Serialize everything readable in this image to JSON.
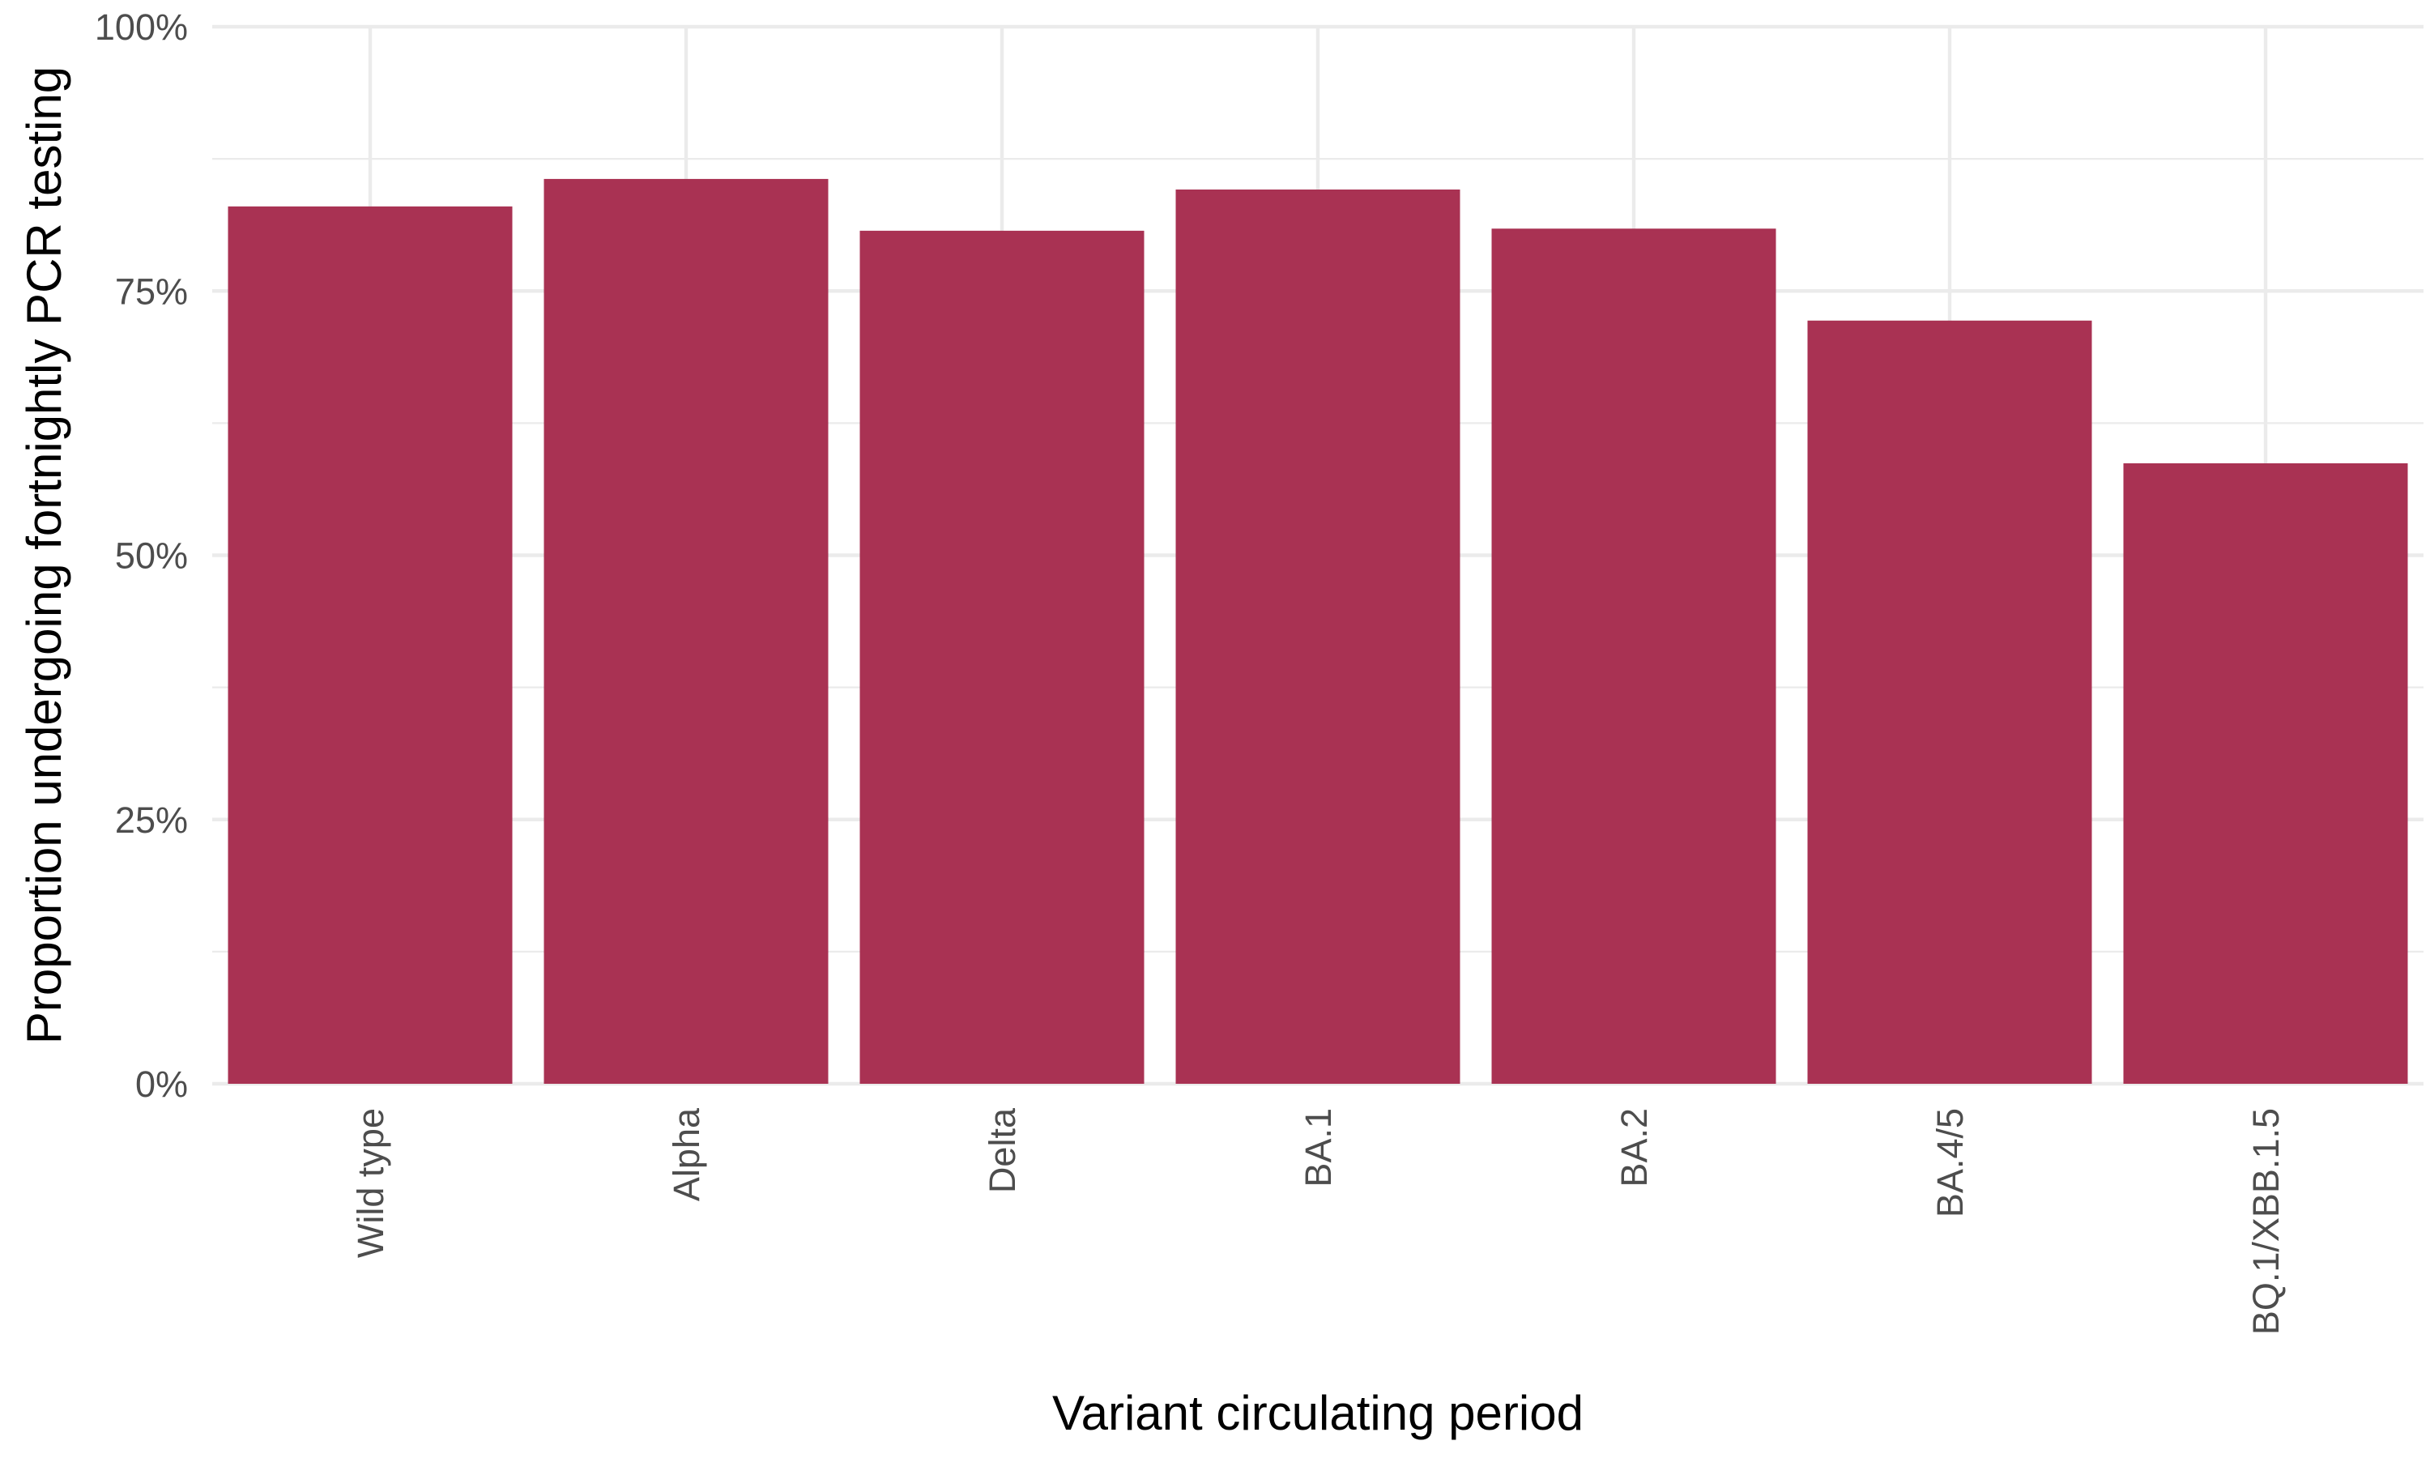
{
  "chart_data": {
    "type": "bar",
    "title": "",
    "xlabel": "Variant circulating period",
    "ylabel": "Proportion undergoing fortnightly PCR testing",
    "categories": [
      "Wild type",
      "Alpha",
      "Delta",
      "BA.1",
      "BA.2",
      "BA.4/5",
      "BQ.1/XBB.1.5"
    ],
    "values": [
      0.83,
      0.856,
      0.807,
      0.846,
      0.809,
      0.722,
      0.587
    ],
    "ylim": [
      0,
      1
    ],
    "yticks": [
      0,
      0.25,
      0.5,
      0.75,
      1
    ],
    "ytick_labels": [
      "0%",
      "25%",
      "50%",
      "75%",
      "100%"
    ],
    "grid": true,
    "legend": "none",
    "bar_color": "#a93253",
    "grid_color": "#ebebeb"
  }
}
